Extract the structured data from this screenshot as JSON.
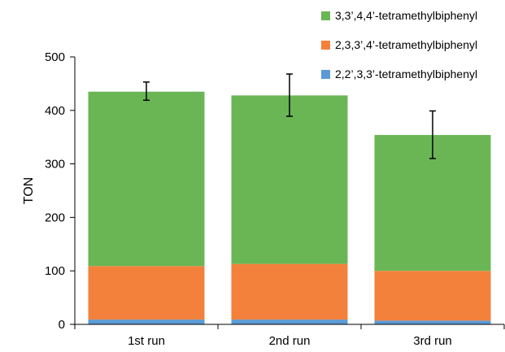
{
  "chart_data": {
    "type": "bar",
    "stacked": true,
    "categories": [
      "1st run",
      "2nd run",
      "3rd run"
    ],
    "ylabel": "TON",
    "ylim": [
      0,
      500
    ],
    "yticks": [
      0,
      100,
      200,
      300,
      400,
      500
    ],
    "grid": false,
    "legend_position": "top-right",
    "series": [
      {
        "name": "2,2’,3,3’-tetramethylbiphenyl",
        "color": "#5B9BD5",
        "values": [
          9,
          9,
          7
        ]
      },
      {
        "name": "2,3,3’,4’-tetramethylbiphenyl",
        "color": "#F4813B",
        "values": [
          100,
          104,
          93
        ]
      },
      {
        "name": "3,3’,4,4’-tetramethylbiphenyl",
        "color": "#6AB655",
        "values": [
          326,
          315,
          254
        ]
      }
    ],
    "error_bars": [
      {
        "low": 419,
        "high": 453
      },
      {
        "low": 389,
        "high": 468
      },
      {
        "low": 310,
        "high": 399
      }
    ]
  }
}
